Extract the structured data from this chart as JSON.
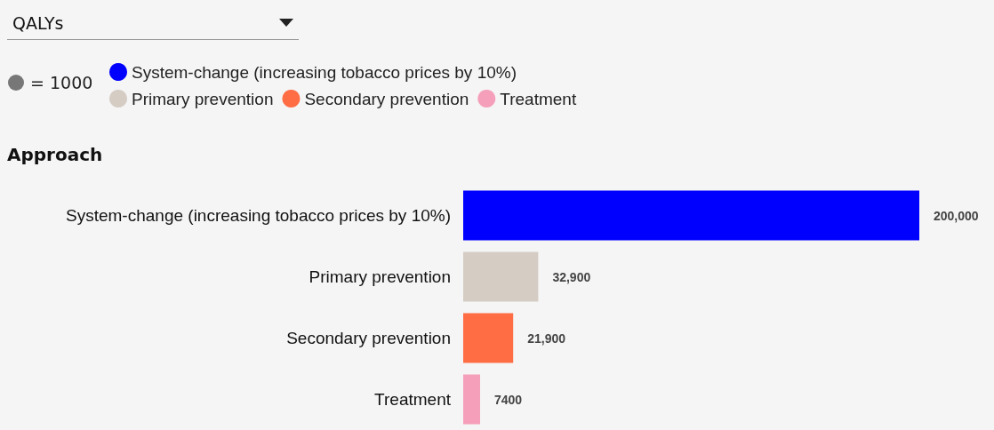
{
  "chart_data": {
    "type": "bar",
    "orientation": "horizontal",
    "title": "QALYs",
    "ylabel": "Approach",
    "annotations": [
      "= 1000"
    ],
    "categories": [
      "System-change (increasing tobacco prices by 10%)",
      "Primary prevention",
      "Secondary prevention",
      "Treatment"
    ],
    "series": [
      {
        "name": "System-change (increasing tobacco prices by 10%)",
        "color": "#0000ff",
        "values": [
          200000,
          null,
          null,
          null
        ],
        "value_labels": [
          "200,000",
          null,
          null,
          null
        ]
      },
      {
        "name": "Primary prevention",
        "color": "#d5cdc4",
        "values": [
          null,
          32900,
          null,
          null
        ],
        "value_labels": [
          null,
          "32,900",
          null,
          null
        ]
      },
      {
        "name": "Secondary prevention",
        "color": "#ff6d45",
        "values": [
          null,
          null,
          21900,
          null
        ],
        "value_labels": [
          null,
          null,
          "21,900",
          null
        ]
      },
      {
        "name": "Treatment",
        "color": "#f59fba",
        "values": [
          null,
          null,
          null,
          7400
        ],
        "value_labels": [
          null,
          null,
          null,
          "7400"
        ]
      }
    ],
    "legend": "top left",
    "grid": false
  }
}
